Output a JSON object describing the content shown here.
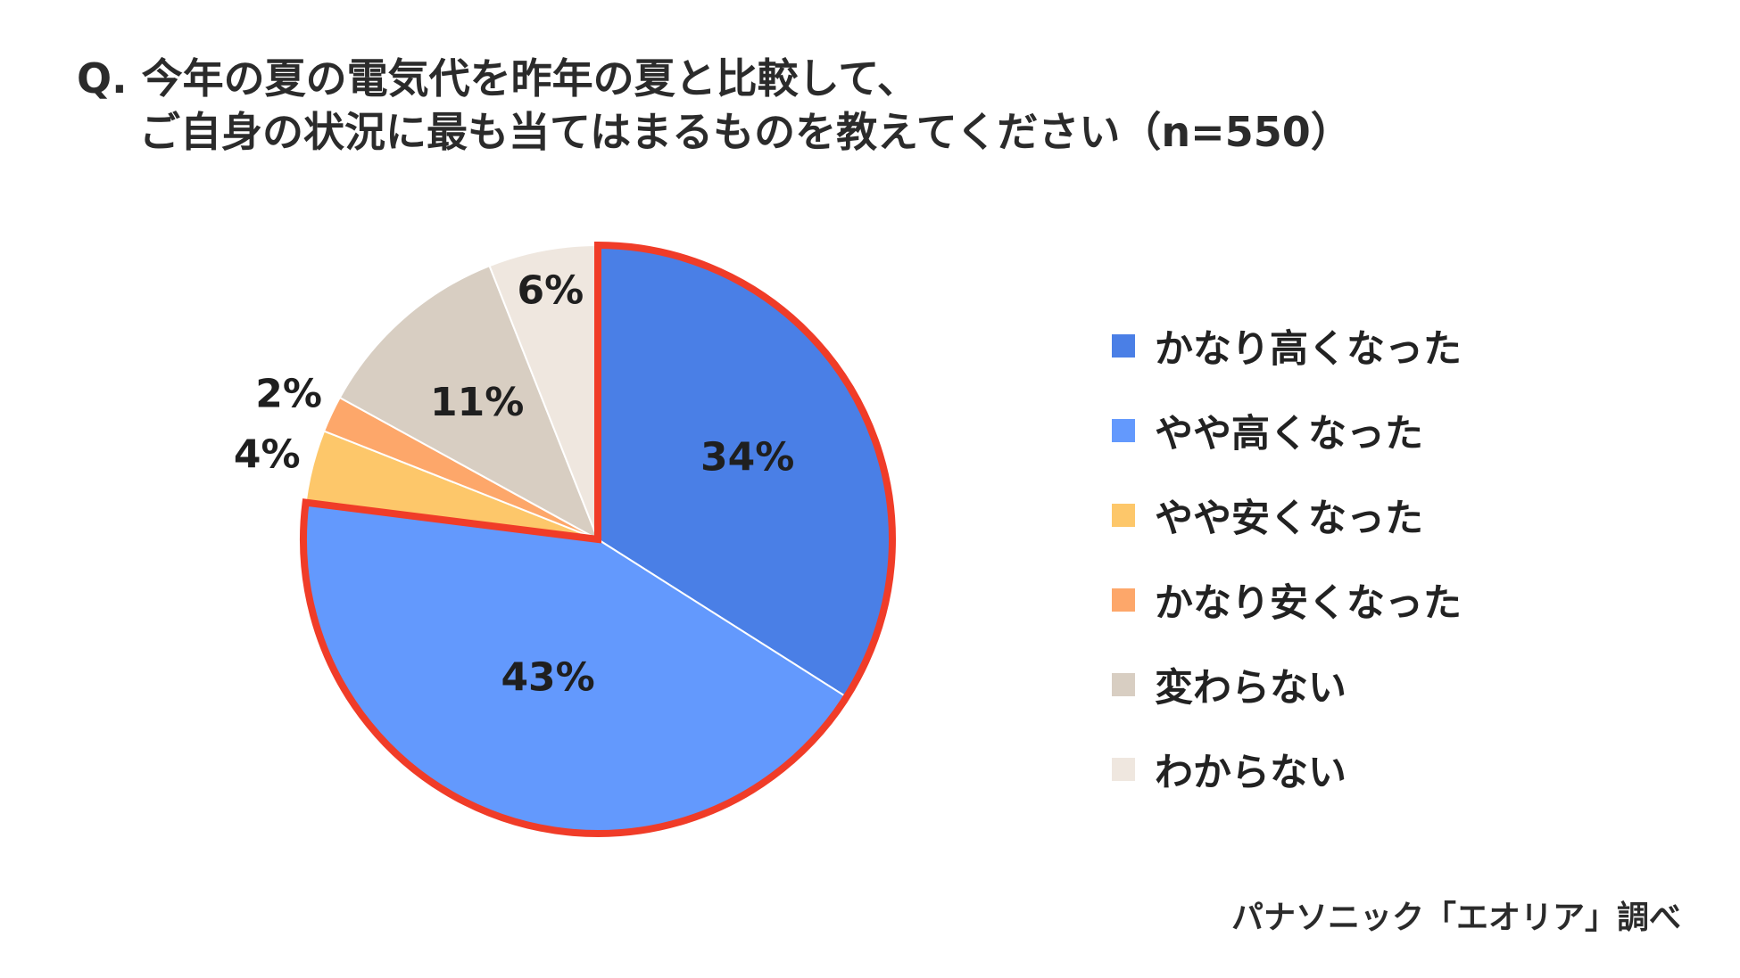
{
  "title": {
    "line1": "Q. 今年の夏の電気代を昨年の夏と比較して、",
    "line2": "ご自身の状況に最も当てはまるものを教えてください（n=550）"
  },
  "chart_data": {
    "type": "pie",
    "categories": [
      "かなり高くなった",
      "やや高くなった",
      "やや安くなった",
      "かなり安くなった",
      "変わらない",
      "わからない"
    ],
    "values": [
      34,
      43,
      4,
      2,
      11,
      6
    ],
    "labels": [
      "34%",
      "43%",
      "4%",
      "2%",
      "11%",
      "6%"
    ],
    "colors": [
      "#4a7fe6",
      "#6399fd",
      "#fdc76a",
      "#fda76a",
      "#d8cec2",
      "#efe7df"
    ],
    "highlight": {
      "categories": [
        "かなり高くなった",
        "やや高くなった"
      ],
      "stroke_color": "#f03c28"
    },
    "legend_position": "right"
  },
  "source": "パナソニック「エオリア」調べ"
}
